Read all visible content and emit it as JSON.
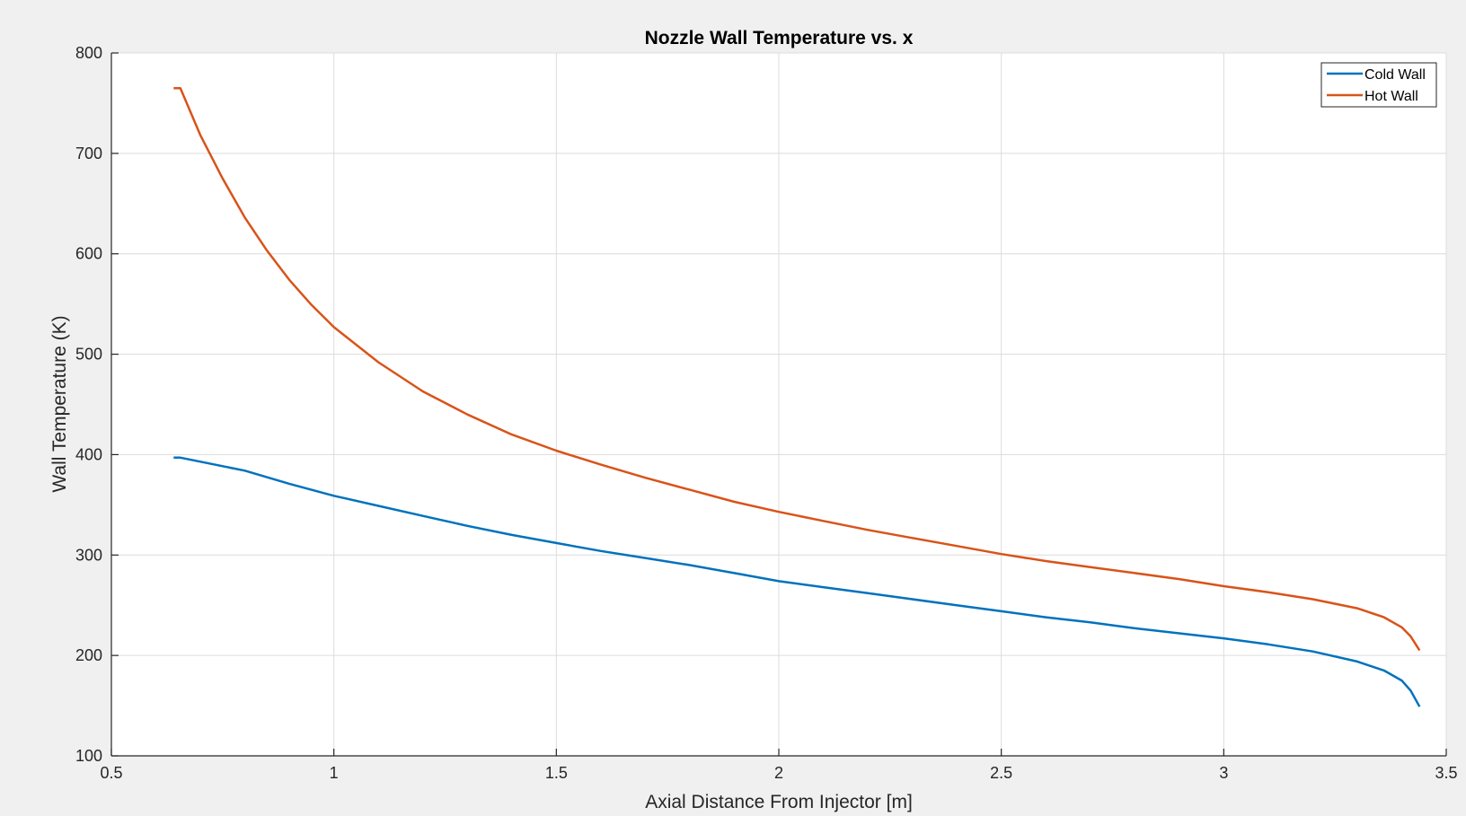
{
  "chart_data": {
    "type": "line",
    "title": "Nozzle Wall Temperature vs. x",
    "xlabel": "Axial Distance From Injector [m]",
    "ylabel": "Wall Temperature (K)",
    "xlim": [
      0.5,
      3.5
    ],
    "ylim": [
      100,
      800
    ],
    "xticks": [
      0.5,
      1,
      1.5,
      2,
      2.5,
      3,
      3.5
    ],
    "xtick_labels": [
      "0.5",
      "1",
      "1.5",
      "2",
      "2.5",
      "3",
      "3.5"
    ],
    "yticks": [
      100,
      200,
      300,
      400,
      500,
      600,
      700,
      800
    ],
    "ytick_labels": [
      "100",
      "200",
      "300",
      "400",
      "500",
      "600",
      "700",
      "800"
    ],
    "grid": true,
    "legend_position": "top-right",
    "series": [
      {
        "name": "Cold Wall",
        "color": "#0072bd",
        "points": [
          [
            0.64,
            397
          ],
          [
            0.655,
            397
          ],
          [
            0.7,
            393
          ],
          [
            0.8,
            384
          ],
          [
            0.9,
            371
          ],
          [
            1.0,
            359
          ],
          [
            1.1,
            349
          ],
          [
            1.2,
            339
          ],
          [
            1.3,
            329
          ],
          [
            1.4,
            320
          ],
          [
            1.5,
            312
          ],
          [
            1.6,
            304
          ],
          [
            1.7,
            297
          ],
          [
            1.8,
            290
          ],
          [
            1.9,
            282
          ],
          [
            2.0,
            274
          ],
          [
            2.1,
            268
          ],
          [
            2.2,
            262
          ],
          [
            2.3,
            256
          ],
          [
            2.4,
            250
          ],
          [
            2.5,
            244
          ],
          [
            2.6,
            238
          ],
          [
            2.7,
            233
          ],
          [
            2.8,
            227
          ],
          [
            2.9,
            222
          ],
          [
            3.0,
            217
          ],
          [
            3.1,
            211
          ],
          [
            3.2,
            204
          ],
          [
            3.3,
            194
          ],
          [
            3.36,
            185
          ],
          [
            3.4,
            175
          ],
          [
            3.42,
            165
          ],
          [
            3.44,
            149
          ]
        ]
      },
      {
        "name": "Hot Wall",
        "color": "#d95319",
        "points": [
          [
            0.64,
            765
          ],
          [
            0.655,
            765
          ],
          [
            0.7,
            718
          ],
          [
            0.75,
            675
          ],
          [
            0.8,
            636
          ],
          [
            0.85,
            603
          ],
          [
            0.9,
            574
          ],
          [
            0.95,
            549
          ],
          [
            1.0,
            527
          ],
          [
            1.1,
            492
          ],
          [
            1.2,
            463
          ],
          [
            1.3,
            440
          ],
          [
            1.4,
            420
          ],
          [
            1.5,
            404
          ],
          [
            1.6,
            390
          ],
          [
            1.7,
            377
          ],
          [
            1.8,
            365
          ],
          [
            1.9,
            353
          ],
          [
            2.0,
            343
          ],
          [
            2.1,
            334
          ],
          [
            2.2,
            325
          ],
          [
            2.3,
            317
          ],
          [
            2.4,
            309
          ],
          [
            2.5,
            301
          ],
          [
            2.6,
            294
          ],
          [
            2.7,
            288
          ],
          [
            2.8,
            282
          ],
          [
            2.9,
            276
          ],
          [
            3.0,
            269
          ],
          [
            3.1,
            263
          ],
          [
            3.2,
            256
          ],
          [
            3.3,
            247
          ],
          [
            3.36,
            238
          ],
          [
            3.4,
            228
          ],
          [
            3.42,
            219
          ],
          [
            3.44,
            205
          ]
        ]
      }
    ]
  }
}
